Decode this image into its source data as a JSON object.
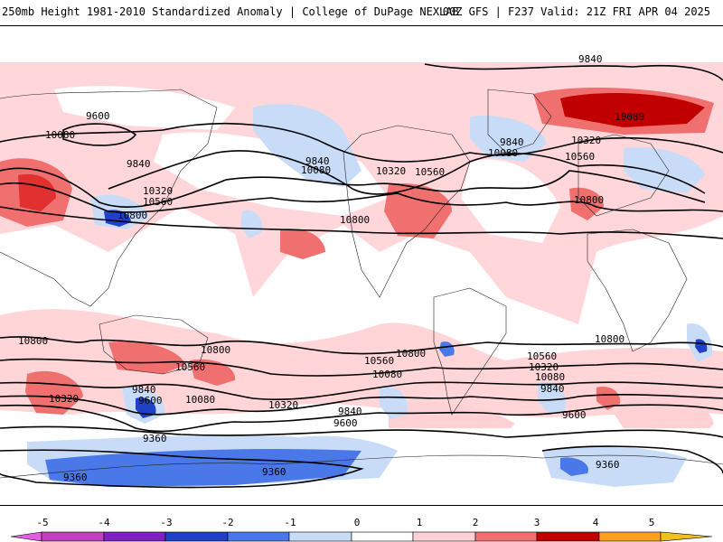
{
  "header": {
    "title": "250mb Height 1981-2010 Standardized Anomaly | College of DuPage NEXLAB",
    "run_info": "00Z GFS | F237 Valid: 21Z FRI APR 04 2025"
  },
  "colors": {
    "neg5": "#e060e0",
    "neg4": "#8020c0",
    "neg3": "#2040c8",
    "neg2": "#4a78e8",
    "neg1": "#c8dcf8",
    "zero": "#ffffff",
    "pos1": "#ffd0d4",
    "pos2": "#f07070",
    "pos3": "#e03030",
    "pos4": "#c00000",
    "pos5": "#ffa020"
  },
  "colorbar": {
    "ticks": [
      "-5",
      "-4",
      "-3",
      "-2",
      "-1",
      "0",
      "1",
      "2",
      "3",
      "4",
      "5"
    ]
  },
  "contour_labels": {
    "nh_9600": "9600",
    "nh_9840_a": "9840",
    "nh_9840_b": "9840",
    "nh_9840_c": "9840",
    "nh_9840_d": "9840",
    "nh_10080_a": "10080",
    "nh_10080_b": "10080",
    "nh_10080_c": "10080",
    "nh_10080_d": "10080",
    "nh_10320_a": "10320",
    "nh_10320_b": "10320",
    "nh_10320_c": "10320",
    "nh_10560_a": "10560",
    "nh_10560_b": "10560",
    "nh_10560_c": "10560",
    "nh_10800_a": "10800",
    "nh_10800_b": "10800",
    "nh_10800_c": "10800",
    "sh_10800_a": "10800",
    "sh_10800_b": "10800",
    "sh_10800_c": "10800",
    "sh_10800_d": "10800",
    "sh_10560_a": "10560",
    "sh_10560_b": "10560",
    "sh_10560_c": "10560",
    "sh_10320_a": "10320",
    "sh_10320_b": "10320",
    "sh_10320_c": "10320",
    "sh_10080_a": "10080",
    "sh_10080_b": "10080",
    "sh_10080_c": "10080",
    "sh_9840_a": "9840",
    "sh_9840_b": "9840",
    "sh_9840_c": "9840",
    "sh_9600_a": "9600",
    "sh_9600_b": "9600",
    "sh_9600_c": "9600",
    "sh_9360_a": "9360",
    "sh_9360_b": "9360",
    "sh_9360_c": "9360",
    "sh_9360_d": "9360"
  }
}
